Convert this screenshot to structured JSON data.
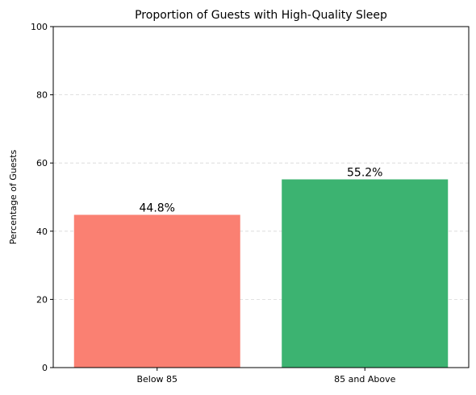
{
  "chart_data": {
    "type": "bar",
    "title": "Proportion of Guests with High-Quality Sleep",
    "xlabel": "",
    "ylabel": "Percentage of Guests",
    "categories": [
      "Below 85",
      "85 and Above"
    ],
    "values": [
      44.8,
      55.2
    ],
    "value_labels": [
      "44.8%",
      "55.2%"
    ],
    "colors": [
      "#fa8072",
      "#3cb371"
    ],
    "ylim": [
      0,
      100
    ],
    "yticks": [
      0,
      20,
      40,
      60,
      80,
      100
    ],
    "ytick_labels": [
      "0",
      "20",
      "40",
      "60",
      "80",
      "100"
    ],
    "grid": "y-dashed",
    "legend": "none"
  }
}
